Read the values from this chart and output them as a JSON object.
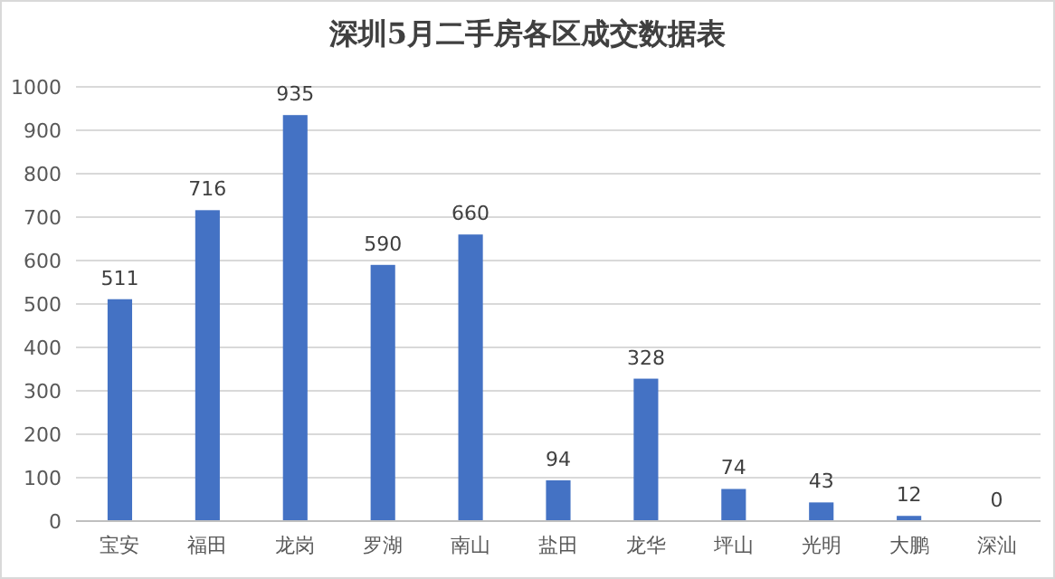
{
  "chart_data": {
    "type": "bar",
    "title": "深圳5月二手房各区成交数据表",
    "categories": [
      "宝安",
      "福田",
      "龙岗",
      "罗湖",
      "南山",
      "盐田",
      "龙华",
      "坪山",
      "光明",
      "大鹏",
      "深汕"
    ],
    "values": [
      511,
      716,
      935,
      590,
      660,
      94,
      328,
      74,
      43,
      12,
      0
    ],
    "color": "#4472c4",
    "ylim": [
      0,
      1000
    ],
    "yticks": [
      0,
      100,
      200,
      300,
      400,
      500,
      600,
      700,
      800,
      900,
      1000
    ],
    "grid": "y",
    "data_labels": true
  }
}
